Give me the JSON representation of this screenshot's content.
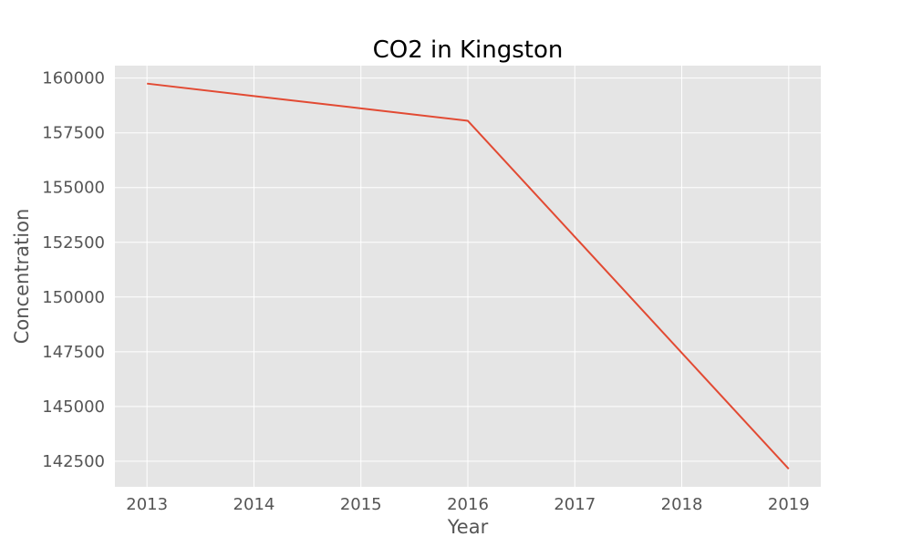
{
  "chart_data": {
    "type": "line",
    "title": "CO2 in Kingston",
    "xlabel": "Year",
    "ylabel": "Concentration",
    "x": [
      2013,
      2014,
      2015,
      2016,
      2017,
      2018,
      2019
    ],
    "series": [
      {
        "values": [
          159750,
          159180,
          158620,
          158050,
          152750,
          147450,
          142150
        ],
        "color": "#e24a33"
      }
    ],
    "x_ticks": [
      "2013",
      "2014",
      "2015",
      "2016",
      "2017",
      "2018",
      "2019"
    ],
    "y_ticks": [
      "142500",
      "145000",
      "147500",
      "150000",
      "152500",
      "155000",
      "157500",
      "160000"
    ],
    "y_tick_values": [
      142500,
      145000,
      147500,
      150000,
      152500,
      155000,
      157500,
      160000
    ],
    "xlim": [
      2012.7,
      2019.3
    ],
    "ylim": [
      141330,
      160570
    ],
    "grid": true,
    "style": {
      "plot_background": "#e5e5e5",
      "grid_color": "#ffffff",
      "text_color": "#555555",
      "title_color": "#000000"
    }
  }
}
